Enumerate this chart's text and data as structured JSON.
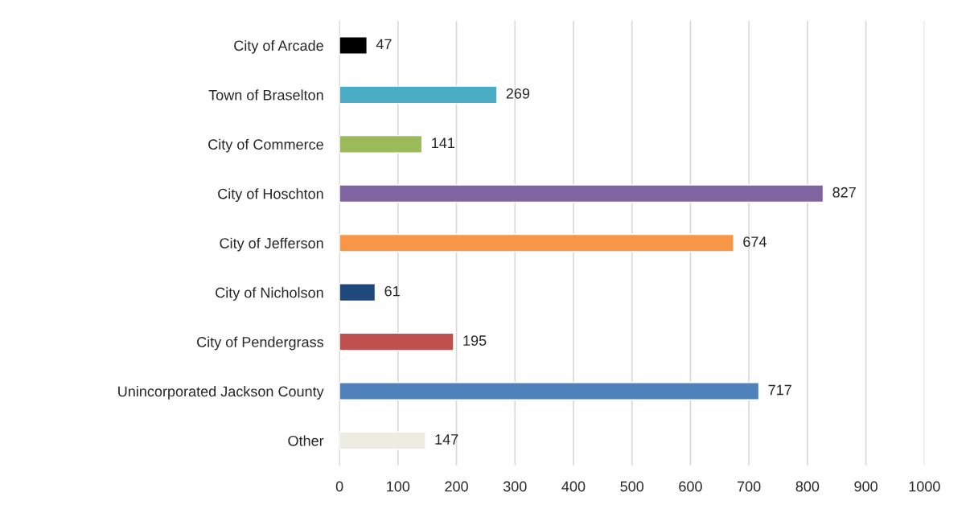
{
  "chart_data": {
    "type": "bar",
    "orientation": "horizontal",
    "categories": [
      "City of Arcade",
      "Town of Braselton",
      "City of Commerce",
      "City of Hoschton",
      "City of Jefferson",
      "City of Nicholson",
      "City of Pendergrass",
      "Unincorporated Jackson County",
      "Other"
    ],
    "values": [
      47,
      269,
      141,
      827,
      674,
      61,
      195,
      717,
      147
    ],
    "colors": [
      "#000000",
      "#4bacc6",
      "#9bbb59",
      "#8064a2",
      "#f79646",
      "#1f497d",
      "#c0504d",
      "#4f81bd",
      "#eeece1"
    ],
    "xlim": [
      0,
      1000
    ],
    "xticks": [
      0,
      100,
      200,
      300,
      400,
      500,
      600,
      700,
      800,
      900,
      1000
    ],
    "grid": "x",
    "legend": false,
    "data_labels": true
  }
}
